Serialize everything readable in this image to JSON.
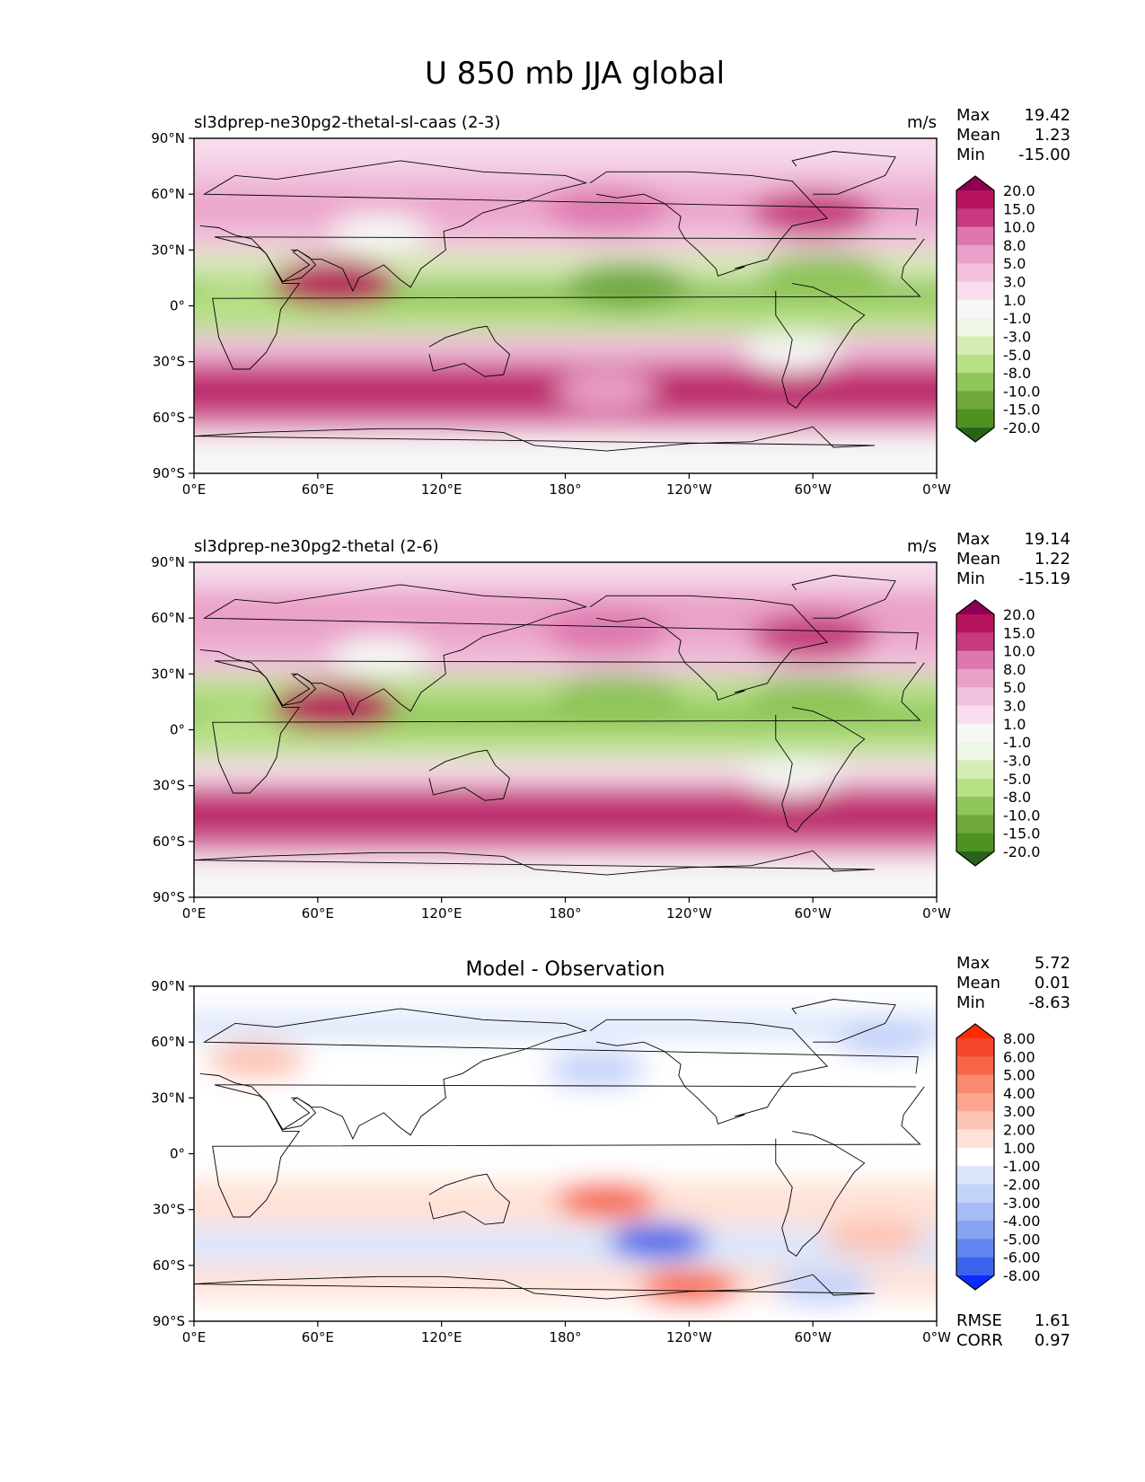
{
  "figure": {
    "title": "U 850 mb JJA global"
  },
  "chart_data": [
    {
      "type": "heatmap",
      "title": "sl3dprep-ne30pg2-thetal-sl-caas (2-3)",
      "units": "m/s",
      "stats": {
        "max": "19.42",
        "mean": "1.23",
        "min": "-15.00"
      },
      "x_ticks": [
        "0°E",
        "60°E",
        "120°E",
        "180°",
        "120°W",
        "60°W",
        "0°W"
      ],
      "y_ticks": [
        "90°N",
        "60°N",
        "30°N",
        "0°",
        "30°S",
        "60°S",
        "90°S"
      ],
      "xlim": [
        0,
        360
      ],
      "ylim": [
        -90,
        90
      ],
      "colorbar": {
        "levels": [
          "20.0",
          "15.0",
          "10.0",
          "8.0",
          "5.0",
          "3.0",
          "1.0",
          "-1.0",
          "-3.0",
          "-5.0",
          "-8.0",
          "-10.0",
          "-15.0",
          "-20.0"
        ],
        "colors": [
          "#8e0152",
          "#b5135c",
          "#c6397e",
          "#de77ae",
          "#eaa0c8",
          "#f1c0dd",
          "#f7dded",
          "#f7f7f7",
          "#eef6e4",
          "#d6ecb5",
          "#b8e186",
          "#8fc559",
          "#6fa83c",
          "#4d9221",
          "#276419"
        ]
      },
      "bands": [
        {
          "lat": 82,
          "value": 1
        },
        {
          "lat": 70,
          "value": 4
        },
        {
          "lat": 52,
          "value": 7
        },
        {
          "lat": 38,
          "value": 4
        },
        {
          "lat": 20,
          "value": -5
        },
        {
          "lat": 8,
          "value": -9
        },
        {
          "lat": -8,
          "value": -7
        },
        {
          "lat": -22,
          "value": 3
        },
        {
          "lat": -38,
          "value": 12
        },
        {
          "lat": -50,
          "value": 17
        },
        {
          "lat": -62,
          "value": 9
        },
        {
          "lat": -74,
          "value": -1
        },
        {
          "lat": -86,
          "value": 0
        }
      ],
      "features": [
        {
          "lon": 68,
          "lat": 12,
          "value": 19
        },
        {
          "lon": 90,
          "lat": 40,
          "value": 0
        },
        {
          "lon": 200,
          "lat": 52,
          "value": 9
        },
        {
          "lon": 300,
          "lat": 50,
          "value": 10
        },
        {
          "lon": 210,
          "lat": 10,
          "value": -12
        },
        {
          "lon": 305,
          "lat": 16,
          "value": -10
        },
        {
          "lon": 290,
          "lat": -25,
          "value": 0
        },
        {
          "lon": 200,
          "lat": -45,
          "value": 5
        },
        {
          "lon": 20,
          "lat": 0,
          "value": -8
        }
      ]
    },
    {
      "type": "heatmap",
      "title": "sl3dprep-ne30pg2-thetal (2-6)",
      "units": "m/s",
      "stats": {
        "max": "19.14",
        "mean": "1.22",
        "min": "-15.19"
      },
      "x_ticks": [
        "0°E",
        "60°E",
        "120°E",
        "180°",
        "120°W",
        "60°W",
        "0°W"
      ],
      "y_ticks": [
        "90°N",
        "60°N",
        "30°N",
        "0°",
        "30°S",
        "60°S",
        "90°S"
      ],
      "xlim": [
        0,
        360
      ],
      "ylim": [
        -90,
        90
      ],
      "colorbar": {
        "levels": [
          "20.0",
          "15.0",
          "10.0",
          "8.0",
          "5.0",
          "3.0",
          "1.0",
          "-1.0",
          "-3.0",
          "-5.0",
          "-8.0",
          "-10.0",
          "-15.0",
          "-20.0"
        ],
        "colors": [
          "#8e0152",
          "#b5135c",
          "#c6397e",
          "#de77ae",
          "#eaa0c8",
          "#f1c0dd",
          "#f7dded",
          "#f7f7f7",
          "#eef6e4",
          "#d6ecb5",
          "#b8e186",
          "#8fc559",
          "#6fa83c",
          "#4d9221",
          "#276419"
        ]
      },
      "bands": [
        {
          "lat": 82,
          "value": 2
        },
        {
          "lat": 70,
          "value": 5
        },
        {
          "lat": 52,
          "value": 7
        },
        {
          "lat": 38,
          "value": 3
        },
        {
          "lat": 20,
          "value": -6
        },
        {
          "lat": 8,
          "value": -9
        },
        {
          "lat": -8,
          "value": -7
        },
        {
          "lat": -22,
          "value": 2
        },
        {
          "lat": -38,
          "value": 13
        },
        {
          "lat": -50,
          "value": 16
        },
        {
          "lat": -62,
          "value": 8
        },
        {
          "lat": -74,
          "value": -1
        },
        {
          "lat": -86,
          "value": 0
        }
      ],
      "features": [
        {
          "lon": 68,
          "lat": 12,
          "value": 17
        },
        {
          "lon": 90,
          "lat": 40,
          "value": 0
        },
        {
          "lon": 200,
          "lat": 52,
          "value": 9
        },
        {
          "lon": 300,
          "lat": 50,
          "value": 10
        },
        {
          "lon": 205,
          "lat": 18,
          "value": -10
        },
        {
          "lon": 300,
          "lat": 16,
          "value": -10
        },
        {
          "lon": 290,
          "lat": -25,
          "value": 0
        },
        {
          "lon": 20,
          "lat": 0,
          "value": -8
        }
      ]
    },
    {
      "type": "heatmap",
      "title": "Model - Observation",
      "units": "",
      "stats": {
        "max": "5.72",
        "mean": "0.01",
        "min": "-8.63",
        "rmse": "1.61",
        "corr": "0.97"
      },
      "x_ticks": [
        "0°E",
        "60°E",
        "120°E",
        "180°",
        "120°W",
        "60°W",
        "0°W"
      ],
      "y_ticks": [
        "90°N",
        "60°N",
        "30°N",
        "0°",
        "30°S",
        "60°S",
        "90°S"
      ],
      "xlim": [
        0,
        360
      ],
      "ylim": [
        -90,
        90
      ],
      "colorbar": {
        "levels": [
          "8.00",
          "6.00",
          "5.00",
          "4.00",
          "3.00",
          "2.00",
          "1.00",
          "-1.00",
          "-2.00",
          "-3.00",
          "-4.00",
          "-5.00",
          "-6.00",
          "-8.00"
        ],
        "colors": [
          "#ff2a00",
          "#f5452a",
          "#f76548",
          "#f98a6e",
          "#fba48f",
          "#fdc3b2",
          "#ffe1d6",
          "#ffffff",
          "#dce6fb",
          "#c3d2f9",
          "#a6bcf6",
          "#86a3f2",
          "#6286ef",
          "#3b63ec",
          "#0a2cff"
        ]
      },
      "bands": [
        {
          "lat": 82,
          "value": 0
        },
        {
          "lat": 70,
          "value": -1.5
        },
        {
          "lat": 52,
          "value": 0
        },
        {
          "lat": 0,
          "value": 0
        },
        {
          "lat": -28,
          "value": 1.5
        },
        {
          "lat": -50,
          "value": -1.5
        },
        {
          "lat": -70,
          "value": 1
        },
        {
          "lat": -86,
          "value": 0
        }
      ],
      "features": [
        {
          "lon": 30,
          "lat": 50,
          "value": 2.5
        },
        {
          "lon": 195,
          "lat": 45,
          "value": -2.5
        },
        {
          "lon": 200,
          "lat": -25,
          "value": 5
        },
        {
          "lon": 225,
          "lat": -47,
          "value": -8
        },
        {
          "lon": 240,
          "lat": -72,
          "value": 5
        },
        {
          "lon": 305,
          "lat": -72,
          "value": -3
        },
        {
          "lon": 330,
          "lat": -45,
          "value": 2.5
        },
        {
          "lon": 335,
          "lat": 62,
          "value": -2.5
        }
      ]
    }
  ]
}
